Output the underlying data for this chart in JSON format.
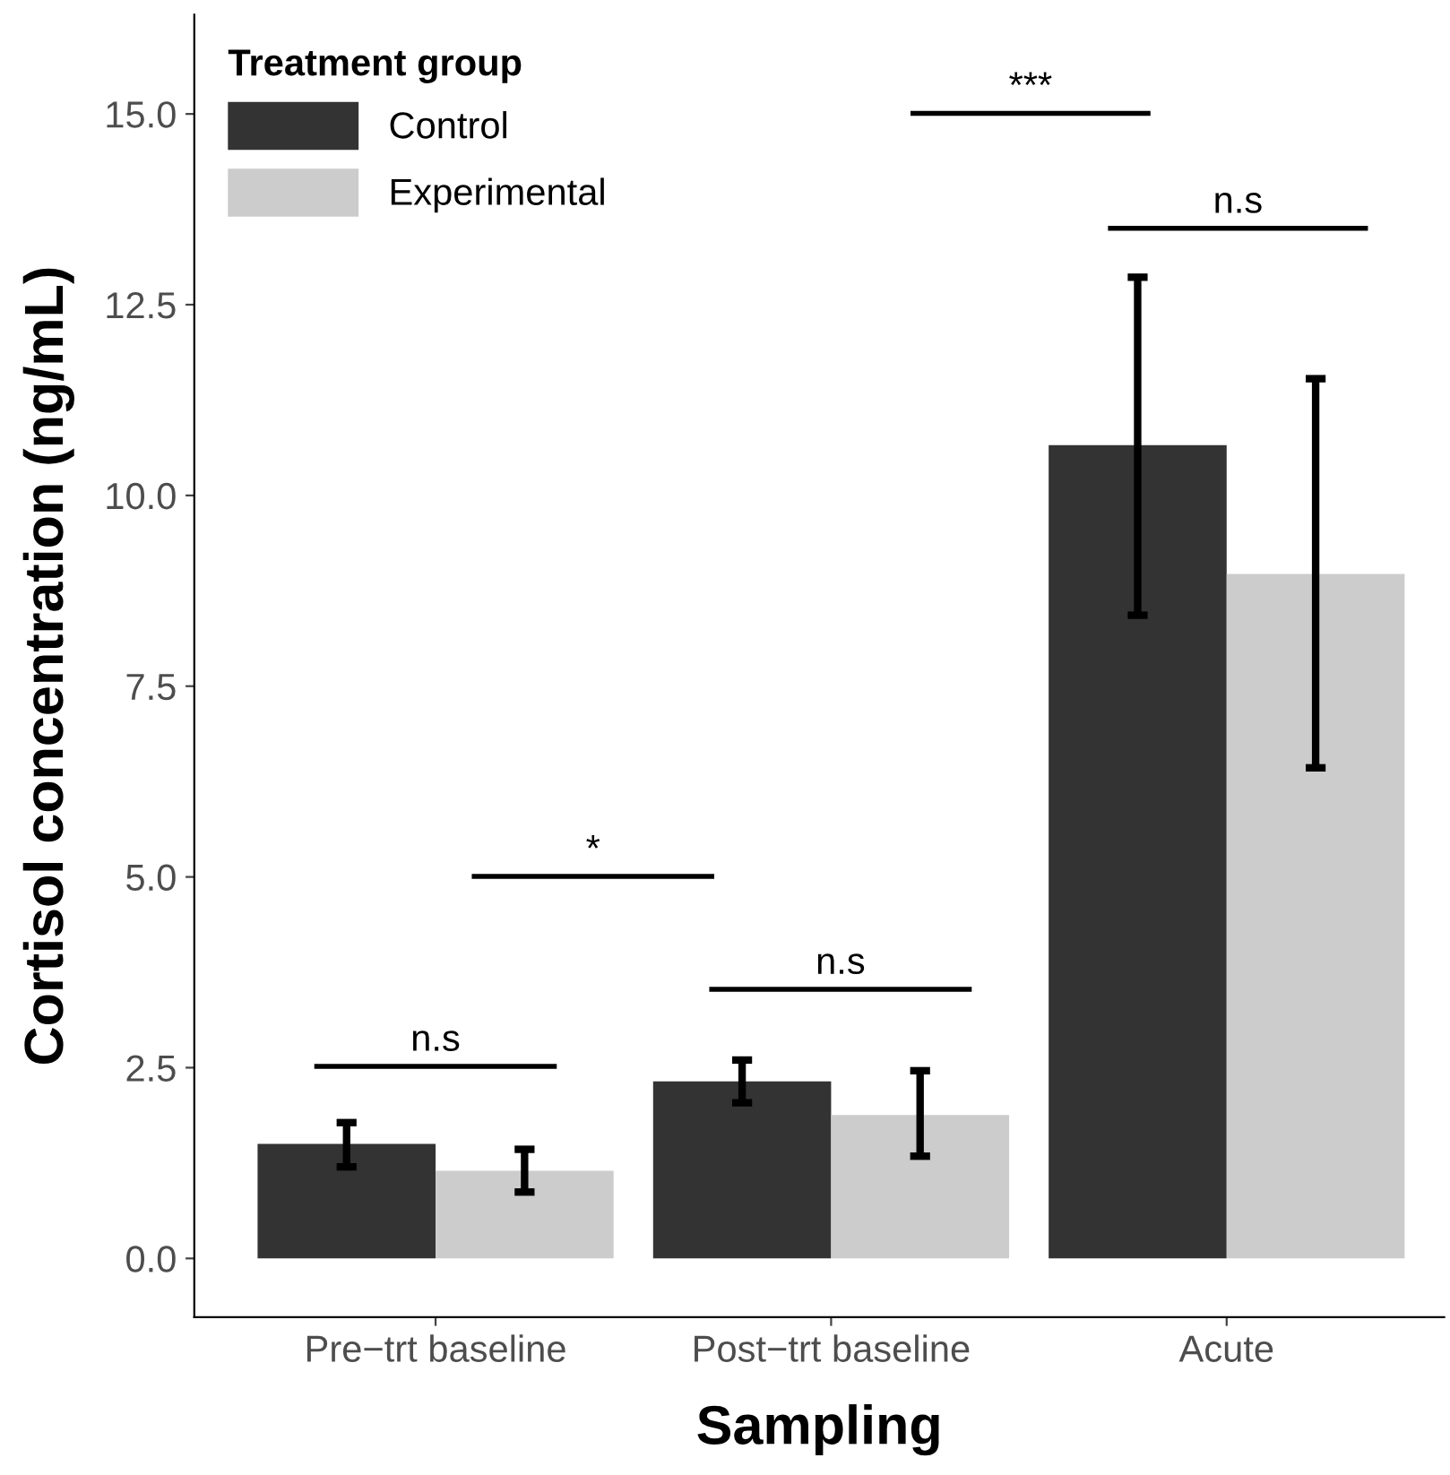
{
  "chart_data": {
    "type": "bar",
    "xlabel": "Sampling",
    "ylabel": "Cortisol concentration (ng/mL)",
    "legend_title": "Treatment group",
    "legend": "top left",
    "grid": false,
    "categories": [
      "Pre−trt baseline",
      "Post−trt baseline",
      "Acute"
    ],
    "ylim": [
      -0.77,
      16.3
    ],
    "yticks": [
      {
        "value": 0,
        "label": "0.0"
      },
      {
        "value": 2.5,
        "label": "2.5"
      },
      {
        "value": 5,
        "label": "5.0"
      },
      {
        "value": 7.5,
        "label": "7.5"
      },
      {
        "value": 10,
        "label": "10.0"
      },
      {
        "value": 12.5,
        "label": "12.5"
      },
      {
        "value": 15,
        "label": "15.0"
      }
    ],
    "series": [
      {
        "name": "Control",
        "color": "#333333",
        "values": [
          1.5,
          2.32,
          10.66
        ],
        "errors": [
          [
            1.2,
            1.78
          ],
          [
            2.04,
            2.6
          ],
          [
            8.43,
            12.86
          ]
        ]
      },
      {
        "name": "Experimental",
        "color": "#cccccc",
        "values": [
          1.15,
          1.88,
          8.97
        ],
        "errors": [
          [
            0.87,
            1.43
          ],
          [
            1.34,
            2.46
          ],
          [
            6.43,
            11.53
          ]
        ]
      }
    ],
    "annotations": [
      "n.s",
      "*",
      "n.s",
      "***",
      "n.s"
    ]
  }
}
